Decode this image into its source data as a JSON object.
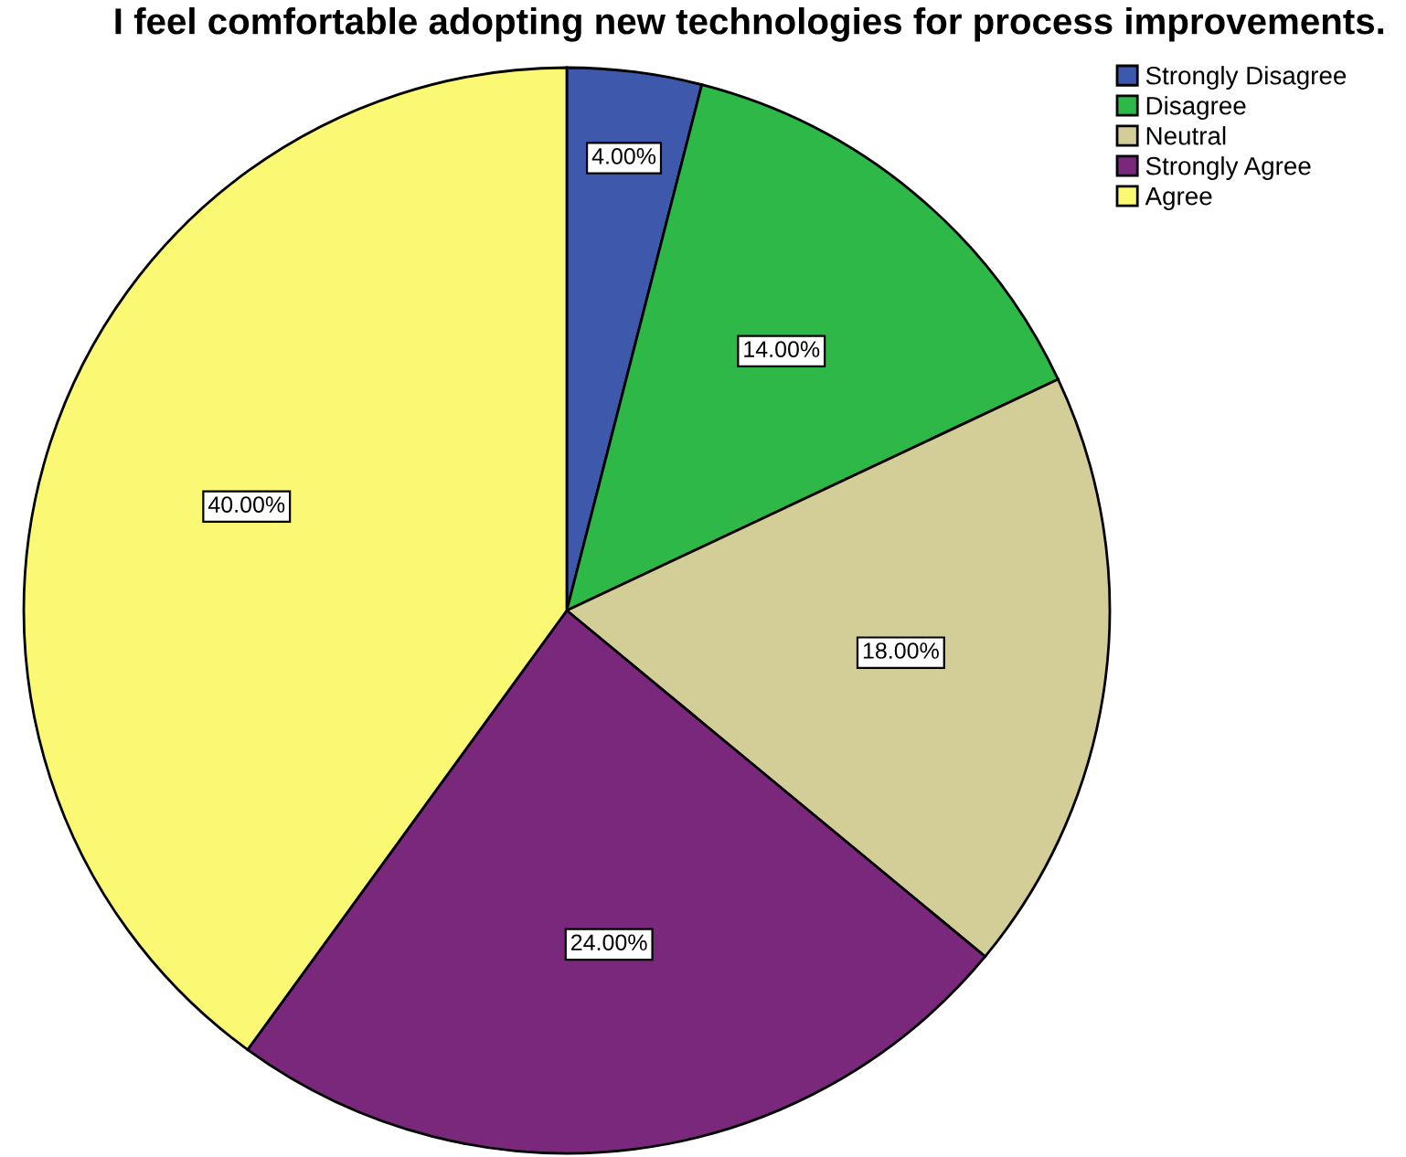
{
  "chart_data": {
    "type": "pie",
    "title": "I feel comfortable adopting new technologies for process improvements.",
    "categories": [
      "Strongly Disagree",
      "Disagree",
      "Neutral",
      "Strongly Agree",
      "Agree"
    ],
    "values": [
      4,
      14,
      18,
      24,
      40
    ],
    "value_labels": [
      "4.00%",
      "14.00%",
      "18.00%",
      "24.00%",
      "40.00%"
    ],
    "colors": [
      "#3e58ac",
      "#2eb848",
      "#d3ce97",
      "#79287c",
      "#fbf873"
    ],
    "legend": "top right"
  }
}
